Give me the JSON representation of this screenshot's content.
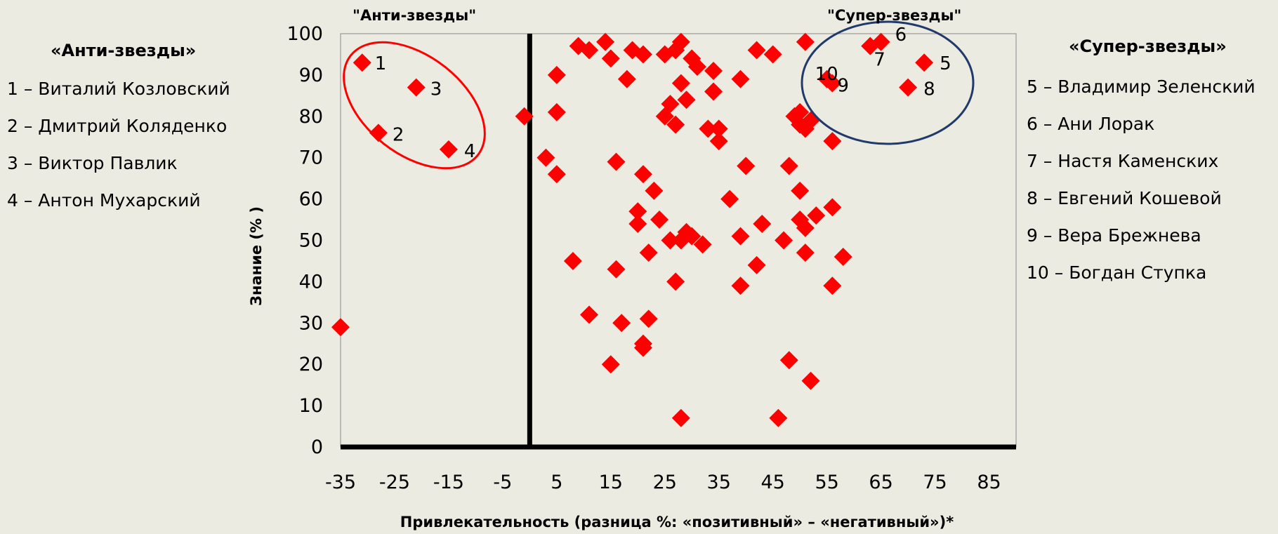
{
  "chart_data": {
    "type": "scatter",
    "xlabel": "Привлекательность (разница %: «позитивный» – «негативный»)*",
    "ylabel": "Знание (% )",
    "xlim": [
      -35,
      90
    ],
    "ylim": [
      0,
      100
    ],
    "x_ticks": [
      -35,
      -25,
      -15,
      -5,
      5,
      15,
      25,
      35,
      45,
      55,
      65,
      75,
      85
    ],
    "y_ticks": [
      0,
      10,
      20,
      30,
      40,
      50,
      60,
      70,
      80,
      90,
      100
    ],
    "grid": false,
    "marker": "diamond",
    "marker_color": "#ff0000",
    "quadrant_labels": {
      "left": "\"Анти-звезды\"",
      "right": "\"Супер-звезды\""
    },
    "labeled_points": [
      {
        "id": "1",
        "x": -31,
        "y": 93
      },
      {
        "id": "2",
        "x": -28,
        "y": 76
      },
      {
        "id": "3",
        "x": -21,
        "y": 87
      },
      {
        "id": "4",
        "x": -15,
        "y": 72
      },
      {
        "id": "5",
        "x": 73,
        "y": 93
      },
      {
        "id": "6",
        "x": 65,
        "y": 98
      },
      {
        "id": "7",
        "x": 63,
        "y": 97
      },
      {
        "id": "8",
        "x": 70,
        "y": 87
      },
      {
        "id": "9",
        "x": 56,
        "y": 88
      },
      {
        "id": "10",
        "x": 55,
        "y": 89
      }
    ],
    "points": [
      {
        "x": -35,
        "y": 29
      },
      {
        "x": -1,
        "y": 80
      },
      {
        "x": 3,
        "y": 70
      },
      {
        "x": 5,
        "y": 90
      },
      {
        "x": 5,
        "y": 81
      },
      {
        "x": 5,
        "y": 66
      },
      {
        "x": 8,
        "y": 45
      },
      {
        "x": 9,
        "y": 97
      },
      {
        "x": 11,
        "y": 96
      },
      {
        "x": 14,
        "y": 98
      },
      {
        "x": 15,
        "y": 94
      },
      {
        "x": 18,
        "y": 89
      },
      {
        "x": 19,
        "y": 96
      },
      {
        "x": 21,
        "y": 95
      },
      {
        "x": 25,
        "y": 95
      },
      {
        "x": 27,
        "y": 96
      },
      {
        "x": 28,
        "y": 98
      },
      {
        "x": 28,
        "y": 88
      },
      {
        "x": 26,
        "y": 83
      },
      {
        "x": 25,
        "y": 80
      },
      {
        "x": 27,
        "y": 78
      },
      {
        "x": 29,
        "y": 84
      },
      {
        "x": 30,
        "y": 94
      },
      {
        "x": 31,
        "y": 92
      },
      {
        "x": 34,
        "y": 91
      },
      {
        "x": 34,
        "y": 86
      },
      {
        "x": 33,
        "y": 77
      },
      {
        "x": 35,
        "y": 74
      },
      {
        "x": 35,
        "y": 77
      },
      {
        "x": 16,
        "y": 69
      },
      {
        "x": 21,
        "y": 66
      },
      {
        "x": 23,
        "y": 62
      },
      {
        "x": 20,
        "y": 57
      },
      {
        "x": 20,
        "y": 54
      },
      {
        "x": 24,
        "y": 55
      },
      {
        "x": 22,
        "y": 47
      },
      {
        "x": 26,
        "y": 50
      },
      {
        "x": 28,
        "y": 50
      },
      {
        "x": 29,
        "y": 52
      },
      {
        "x": 30,
        "y": 51
      },
      {
        "x": 32,
        "y": 49
      },
      {
        "x": 27,
        "y": 40
      },
      {
        "x": 16,
        "y": 43
      },
      {
        "x": 11,
        "y": 32
      },
      {
        "x": 17,
        "y": 30
      },
      {
        "x": 22,
        "y": 31
      },
      {
        "x": 21,
        "y": 25
      },
      {
        "x": 21,
        "y": 24
      },
      {
        "x": 15,
        "y": 20
      },
      {
        "x": 28,
        "y": 7
      },
      {
        "x": 37,
        "y": 60
      },
      {
        "x": 40,
        "y": 68
      },
      {
        "x": 39,
        "y": 89
      },
      {
        "x": 42,
        "y": 96
      },
      {
        "x": 45,
        "y": 95
      },
      {
        "x": 51,
        "y": 98
      },
      {
        "x": 39,
        "y": 51
      },
      {
        "x": 43,
        "y": 54
      },
      {
        "x": 42,
        "y": 44
      },
      {
        "x": 39,
        "y": 39
      },
      {
        "x": 47,
        "y": 50
      },
      {
        "x": 48,
        "y": 68
      },
      {
        "x": 50,
        "y": 62
      },
      {
        "x": 49,
        "y": 80
      },
      {
        "x": 50,
        "y": 81
      },
      {
        "x": 51,
        "y": 77
      },
      {
        "x": 50,
        "y": 78
      },
      {
        "x": 52,
        "y": 79
      },
      {
        "x": 50,
        "y": 55
      },
      {
        "x": 51,
        "y": 53
      },
      {
        "x": 53,
        "y": 56
      },
      {
        "x": 51,
        "y": 47
      },
      {
        "x": 56,
        "y": 74
      },
      {
        "x": 56,
        "y": 58
      },
      {
        "x": 58,
        "y": 46
      },
      {
        "x": 56,
        "y": 39
      },
      {
        "x": 48,
        "y": 21
      },
      {
        "x": 52,
        "y": 16
      },
      {
        "x": 46,
        "y": 7
      }
    ]
  },
  "legend_left": {
    "title": "«Анти-звезды»",
    "items": [
      "1 – Виталий Козловский",
      "2 – Дмитрий Коляденко",
      "3 – Виктор Павлик",
      "4 – Антон Мухарский"
    ]
  },
  "legend_right": {
    "title": "«Супер-звезды»",
    "items": [
      "5 –  Владимир Зеленский",
      "6 – Ани Лорак",
      "7 – Настя Каменских",
      "8 – Евгений Кошевой",
      "9 – Вера Брежнева",
      "10 – Богдан Ступка"
    ]
  },
  "colors": {
    "background": "#ecebe1",
    "marker": "#ff0000",
    "anti_ellipse": "#ff0000",
    "super_ellipse": "#1f3a6b",
    "axis": "#000000"
  }
}
